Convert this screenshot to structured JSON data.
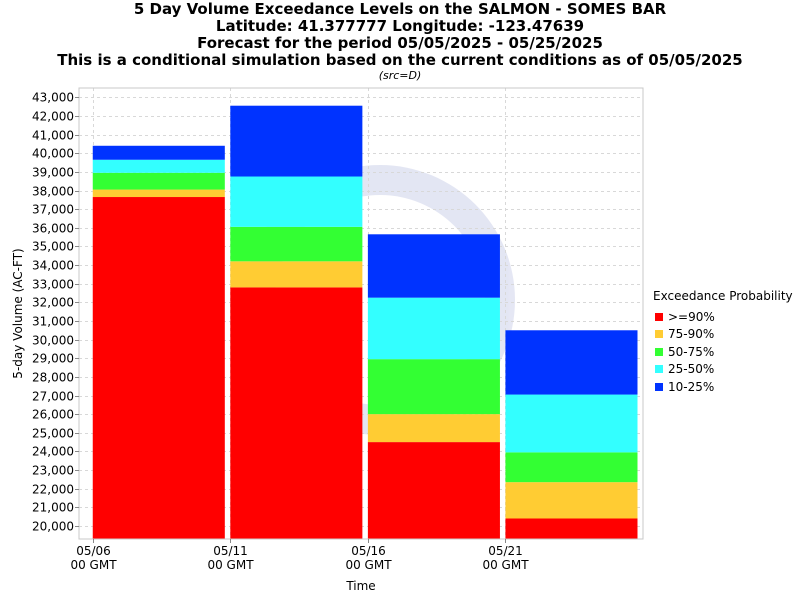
{
  "header": {
    "title_lines": [
      "5 Day Volume Exceedance Levels on the SALMON - SOMES BAR",
      "Latitude: 41.377777 Longitude: -123.47639",
      "Forecast for the period 05/05/2025 - 05/25/2025",
      "This is a conditional simulation based on the current conditions as of 05/05/2025"
    ],
    "subtitle": "(src=D)"
  },
  "legend": {
    "title": "Exceedance Probability",
    "items": [
      {
        "label": ">=90%",
        "color": "#ff0000"
      },
      {
        "label": "75-90%",
        "color": "#ffcc33"
      },
      {
        "label": "50-75%",
        "color": "#33ff33"
      },
      {
        "label": "25-50%",
        "color": "#33ffff"
      },
      {
        "label": "10-25%",
        "color": "#0033ff"
      }
    ]
  },
  "chart_data": {
    "type": "bar",
    "stacked": true,
    "xlabel": "Time",
    "ylabel": "5-day Volume (AC-FT)",
    "ylim": [
      19300,
      43500
    ],
    "yticks": [
      20000,
      21000,
      22000,
      23000,
      24000,
      25000,
      26000,
      27000,
      28000,
      29000,
      30000,
      31000,
      32000,
      33000,
      34000,
      35000,
      36000,
      37000,
      38000,
      39000,
      40000,
      41000,
      42000,
      43000
    ],
    "ytick_labels": [
      "20,000",
      "21,000",
      "22,000",
      "23,000",
      "24,000",
      "25,000",
      "26,000",
      "27,000",
      "28,000",
      "29,000",
      "30,000",
      "31,000",
      "32,000",
      "33,000",
      "34,000",
      "35,000",
      "36,000",
      "37,000",
      "38,000",
      "39,000",
      "40,000",
      "41,000",
      "42,000",
      "43,000"
    ],
    "xticks": [
      {
        "date": "05/06",
        "time": "00 GMT",
        "day": 1
      },
      {
        "date": "05/11",
        "time": "00 GMT",
        "day": 6
      },
      {
        "date": "05/16",
        "time": "00 GMT",
        "day": 11
      },
      {
        "date": "05/21",
        "time": "00 GMT",
        "day": 16
      }
    ],
    "xlim_days": [
      0.5,
      21
    ],
    "bars": [
      {
        "start": "05/06",
        "end": "05/11",
        "start_day": 1,
        "end_day": 5.8,
        "levels": [
          37650,
          38050,
          38950,
          39650,
          40400
        ]
      },
      {
        "start": "05/11",
        "end": "05/16",
        "start_day": 6,
        "end_day": 10.8,
        "levels": [
          32800,
          34200,
          36050,
          38750,
          42550
        ]
      },
      {
        "start": "05/16",
        "end": "05/21",
        "start_day": 11,
        "end_day": 15.8,
        "levels": [
          24500,
          26000,
          28950,
          32250,
          35650
        ]
      },
      {
        "start": "05/21",
        "end": "05/26",
        "start_day": 16,
        "end_day": 20.8,
        "levels": [
          20400,
          22350,
          23950,
          27050,
          30500
        ]
      }
    ],
    "series": [
      {
        "name": ">=90%"
      },
      {
        "name": "75-90%"
      },
      {
        "name": "50-75%"
      },
      {
        "name": "25-50%"
      },
      {
        "name": "10-25%"
      }
    ],
    "grid": true,
    "legend_position": "right"
  }
}
